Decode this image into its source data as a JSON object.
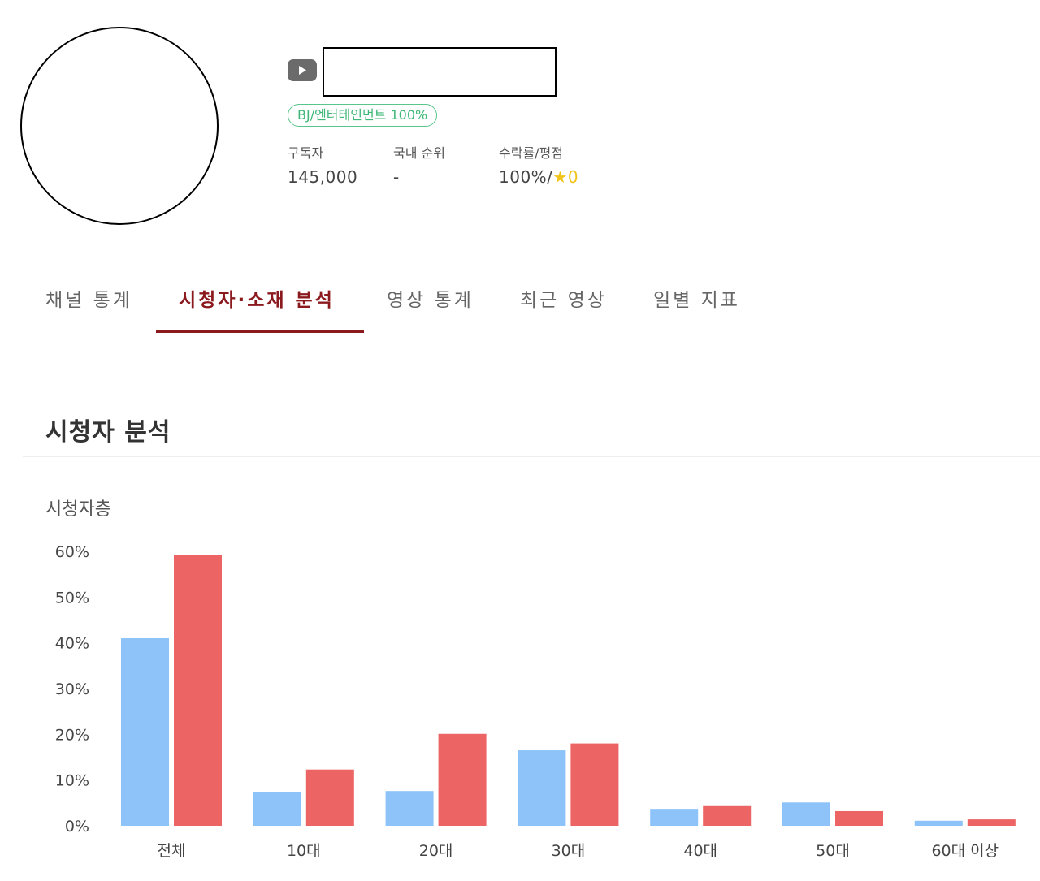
{
  "channel": {
    "category_badge": "BJ/엔터테인먼트 100%",
    "stats": {
      "subscribers_label": "구독자",
      "subscribers_value": "145,000",
      "rank_label": "국내 순위",
      "rank_value": "-",
      "rating_label": "수락률/평점",
      "rating_prefix": "100%/",
      "rating_star": "★",
      "rating_value": "0"
    }
  },
  "tabs": [
    {
      "label": "채널 통계",
      "active": false
    },
    {
      "label": "시청자·소재 분석",
      "active": true
    },
    {
      "label": "영상 통계",
      "active": false
    },
    {
      "label": "최근 영상",
      "active": false
    },
    {
      "label": "일별 지표",
      "active": false
    }
  ],
  "section": {
    "title": "시청자 분석"
  },
  "colors": {
    "accent": "#8b1a1f",
    "badge_green": "#3fb877",
    "series_blue": "#8dc3f9",
    "series_red": "#ec6464",
    "star": "#f0c419"
  },
  "chart_data": {
    "type": "bar",
    "title": "시청자층",
    "categories": [
      "전체",
      "10대",
      "20대",
      "30대",
      "40대",
      "50대",
      "60대 이상"
    ],
    "series": [
      {
        "values": [
          41,
          7.3,
          7.6,
          16.5,
          3.7,
          5.1,
          1.1
        ]
      },
      {
        "values": [
          59.2,
          12.3,
          20.1,
          18.0,
          4.3,
          3.2,
          1.4
        ]
      }
    ],
    "y_ticks": [
      "0%",
      "10%",
      "20%",
      "30%",
      "40%",
      "50%",
      "60%"
    ],
    "ylim": [
      0,
      60
    ],
    "grid": false,
    "legend": "none"
  }
}
